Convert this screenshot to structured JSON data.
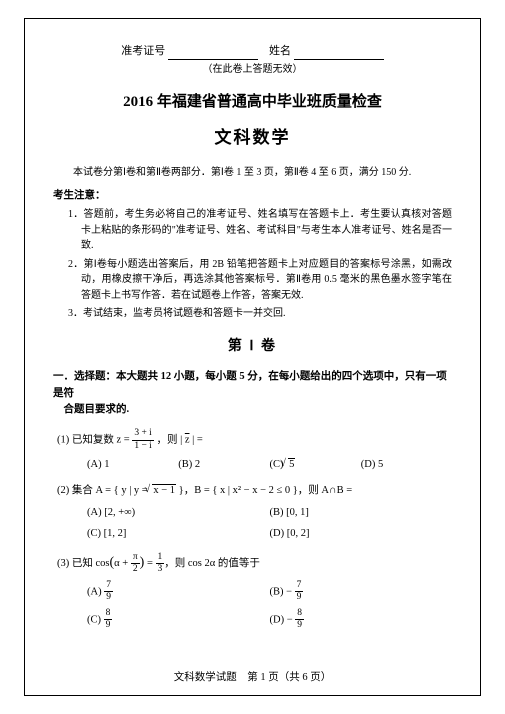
{
  "header": {
    "label_id": "准考证号",
    "label_name": "姓名",
    "sub": "（在此卷上答题无效）"
  },
  "title_main": "2016 年福建省普通高中毕业班质量检查",
  "title_sub": "文科数学",
  "intro": "本试卷分第Ⅰ卷和第Ⅱ卷两部分．第Ⅰ卷 1 至 3 页，第Ⅱ卷 4 至 6 页，满分 150 分.",
  "notice_title": "考生注意：",
  "notices": [
    "1．答题前，考生务必将自己的准考证号、姓名填写在答题卡上．考生要认真核对答题卡上粘贴的条形码的\"准考证号、姓名、考试科目\"与考生本人准考证号、姓名是否一致.",
    "2．第Ⅰ卷每小题选出答案后，用 2B 铅笔把答题卡上对应题目的答案标号涂黑，如需改动，用橡皮擦干净后，再选涂其他答案标号．第Ⅱ卷用 0.5 毫米的黑色墨水签字笔在答题卡上书写作答．若在试题卷上作答，答案无效.",
    "3．考试结束，监考员将试题卷和答题卡一并交回."
  ],
  "section1_title": "第 Ⅰ 卷",
  "q_intro_bold": "一．选择题：本大题共 12 小题，每小题 5 分，在每小题给出的四个选项中，只有一项是符",
  "q_intro_rest": "合题目要求的.",
  "q1": {
    "stem_prefix": "(1) 已知复数 z = ",
    "frac_n": "3 + i",
    "frac_d": "1 − i",
    "stem_suffix": "，则 | z̄ | =",
    "choices": {
      "A": "(A) 1",
      "B": "(B) 2",
      "C_pre": "(C) ",
      "C_rad": "5",
      "D": "(D) 5"
    }
  },
  "q2": {
    "stem_prefix": "(2) 集合 A = { y | y = ",
    "rad": "x − 1",
    "stem_mid": " }，B = { x | x² − x − 2 ≤ 0 }，则 A∩B =",
    "choices": {
      "A": "(A) [2, +∞)",
      "B": "(B) [0, 1]",
      "C": "(C) [1, 2]",
      "D": "(D) [0, 2]"
    }
  },
  "q3": {
    "stem_prefix": "(3) 已知 cos",
    "paren_l": "(",
    "alpha": "α + ",
    "pi_n": "π",
    "pi_d": "2",
    "paren_r": ")",
    "eq": " = ",
    "v_n": "1",
    "v_d": "3",
    "stem_suffix": "，则 cos 2α 的值等于",
    "choices": {
      "A_pre": "(A) ",
      "A_n": "7",
      "A_d": "9",
      "B_pre": "(B) − ",
      "B_n": "7",
      "B_d": "9",
      "C_pre": "(C) ",
      "C_n": "8",
      "C_d": "9",
      "D_pre": "(D) − ",
      "D_n": "8",
      "D_d": "9"
    }
  },
  "footer": "文科数学试题　第 1 页（共 6 页）"
}
